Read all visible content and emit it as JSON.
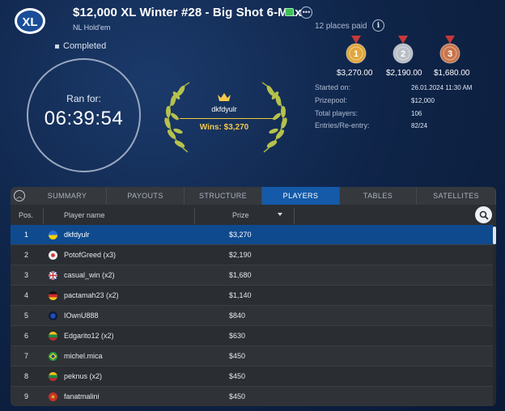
{
  "app": {
    "logo_text": "XL",
    "title": "$12,000 XL Winter #28 - Big Shot 6-Max",
    "game_type": "NL Hold'em",
    "status": "Completed"
  },
  "timer": {
    "label": "Ran for:",
    "value": "06:39:54"
  },
  "winner": {
    "name": "dkfdyulr",
    "wins": "Wins: $3,270"
  },
  "payouts": {
    "places_paid": "12 places paid",
    "medals": [
      {
        "place": "1",
        "amount": "$3,270.00",
        "color": "#e0a63a"
      },
      {
        "place": "2",
        "amount": "$2,190.00",
        "color": "#b9bec6"
      },
      {
        "place": "3",
        "amount": "$1,680.00",
        "color": "#c9744a"
      }
    ]
  },
  "details": [
    {
      "label": "Started on:",
      "value": "26.01.2024  11:30 AM"
    },
    {
      "label": "Prizepool:",
      "value": "$12,000"
    },
    {
      "label": "Total players:",
      "value": "106"
    },
    {
      "label": "Entries/Re-entry:",
      "value": "82/24"
    }
  ],
  "tabs": [
    {
      "label": "SUMMARY",
      "active": false
    },
    {
      "label": "PAYOUTS",
      "active": false
    },
    {
      "label": "STRUCTURE",
      "active": false
    },
    {
      "label": "PLAYERS",
      "active": true
    },
    {
      "label": "TABLES",
      "active": false
    },
    {
      "label": "SATELLITES",
      "active": false
    }
  ],
  "table": {
    "columns": [
      "Pos.",
      "Player name",
      "Prize"
    ],
    "rows": [
      {
        "pos": "1",
        "flag": "ukraine",
        "name": "dkfdyulr",
        "prize": "$3,270"
      },
      {
        "pos": "2",
        "flag": "circle-white",
        "name": "PotofGreed (x3)",
        "prize": "$2,190"
      },
      {
        "pos": "3",
        "flag": "uk",
        "name": "casual_win (x2)",
        "prize": "$1,680"
      },
      {
        "pos": "4",
        "flag": "germany",
        "name": "pactamah23 (x2)",
        "prize": "$1,140"
      },
      {
        "pos": "5",
        "flag": "dark-blue",
        "name": "IOwnU888",
        "prize": "$840"
      },
      {
        "pos": "6",
        "flag": "lithuania",
        "name": "Edgarito12 (x2)",
        "prize": "$630"
      },
      {
        "pos": "7",
        "flag": "brazil",
        "name": "michel.mica",
        "prize": "$450"
      },
      {
        "pos": "8",
        "flag": "lithuania",
        "name": "peknus (x2)",
        "prize": "$450"
      },
      {
        "pos": "9",
        "flag": "montenegro",
        "name": "fanatmalini",
        "prize": "$450"
      }
    ]
  },
  "colors": {
    "accent_blue": "#145aa8",
    "gold": "#f2c94c",
    "background": "#0f2549"
  }
}
